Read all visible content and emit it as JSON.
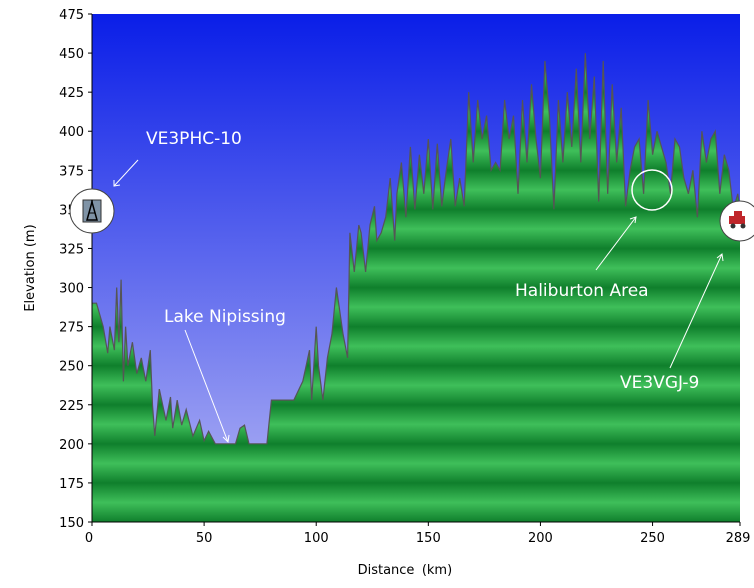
{
  "chart_data": {
    "type": "area",
    "xlabel": "Distance",
    "xunit": "(km)",
    "ylabel": "Elevation (m)",
    "xlim": [
      0,
      289
    ],
    "ylim": [
      150,
      475
    ],
    "x_ticks": [
      0,
      50,
      100,
      150,
      200,
      250,
      289
    ],
    "y_ticks": [
      150,
      175,
      200,
      225,
      250,
      275,
      300,
      325,
      350,
      375,
      400,
      425,
      450,
      475
    ],
    "grid": false,
    "colors": {
      "sky_top": "#0a1ee8",
      "sky_bottom": "#b4b6f4",
      "terrain_light": "#3fbf5a",
      "terrain_dark": "#0f7f2c",
      "profile_line": "#555555",
      "marker_end": "#c0262a"
    },
    "series": [
      {
        "x": [
          0,
          2,
          5,
          7,
          8,
          10,
          11,
          12,
          13,
          14,
          15,
          16,
          18,
          20,
          22,
          24,
          26,
          27,
          28,
          30,
          33,
          35,
          36,
          38,
          40,
          42,
          45,
          48,
          50,
          52,
          55,
          58,
          60,
          62,
          64,
          66,
          68,
          70,
          72,
          74,
          76,
          78,
          80,
          83,
          86,
          90,
          94,
          97,
          98,
          100,
          101,
          103,
          105,
          107,
          109,
          112,
          114,
          115,
          117,
          119,
          120,
          122,
          124,
          126,
          127,
          129,
          131,
          133,
          135,
          136,
          138,
          140,
          142,
          144,
          146,
          148,
          150,
          152,
          154,
          156,
          158,
          160,
          162,
          164,
          166,
          168,
          170,
          172,
          174,
          176,
          178,
          180,
          182,
          184,
          186,
          188,
          190,
          192,
          194,
          196,
          198,
          200,
          202,
          204,
          206,
          208,
          210,
          212,
          214,
          216,
          218,
          220,
          222,
          224,
          226,
          228,
          230,
          232,
          234,
          236,
          238,
          240,
          242,
          244,
          246,
          248,
          250,
          252,
          254,
          256,
          258,
          260,
          262,
          264,
          266,
          268,
          270,
          272,
          274,
          276,
          278,
          280,
          282,
          284,
          286,
          288,
          289
        ],
        "values": [
          290,
          290,
          275,
          258,
          275,
          260,
          300,
          265,
          305,
          240,
          275,
          250,
          265,
          245,
          255,
          240,
          260,
          225,
          205,
          235,
          215,
          230,
          210,
          228,
          212,
          222,
          205,
          215,
          202,
          208,
          200,
          200,
          200,
          200,
          200,
          210,
          212,
          200,
          200,
          200,
          200,
          200,
          228,
          228,
          228,
          228,
          240,
          260,
          228,
          275,
          250,
          228,
          255,
          270,
          300,
          270,
          255,
          335,
          310,
          340,
          335,
          310,
          340,
          352,
          330,
          335,
          345,
          370,
          330,
          360,
          380,
          345,
          390,
          350,
          385,
          360,
          395,
          350,
          392,
          352,
          375,
          395,
          352,
          370,
          352,
          425,
          380,
          420,
          395,
          410,
          375,
          380,
          375,
          420,
          395,
          410,
          360,
          420,
          380,
          430,
          395,
          370,
          445,
          410,
          350,
          420,
          380,
          425,
          390,
          440,
          380,
          450,
          395,
          435,
          355,
          445,
          360,
          430,
          380,
          415,
          352,
          375,
          390,
          395,
          360,
          420,
          385,
          400,
          390,
          380,
          360,
          395,
          390,
          370,
          360,
          375,
          345,
          400,
          380,
          395,
          400,
          360,
          385,
          375,
          350,
          360,
          350
        ]
      }
    ],
    "annotations": [
      {
        "text": "VE3PHC-10"
      },
      {
        "text": "Lake Nipissing"
      },
      {
        "text": "Haliburton Area"
      },
      {
        "text": "VE3VGJ-9"
      }
    ]
  }
}
